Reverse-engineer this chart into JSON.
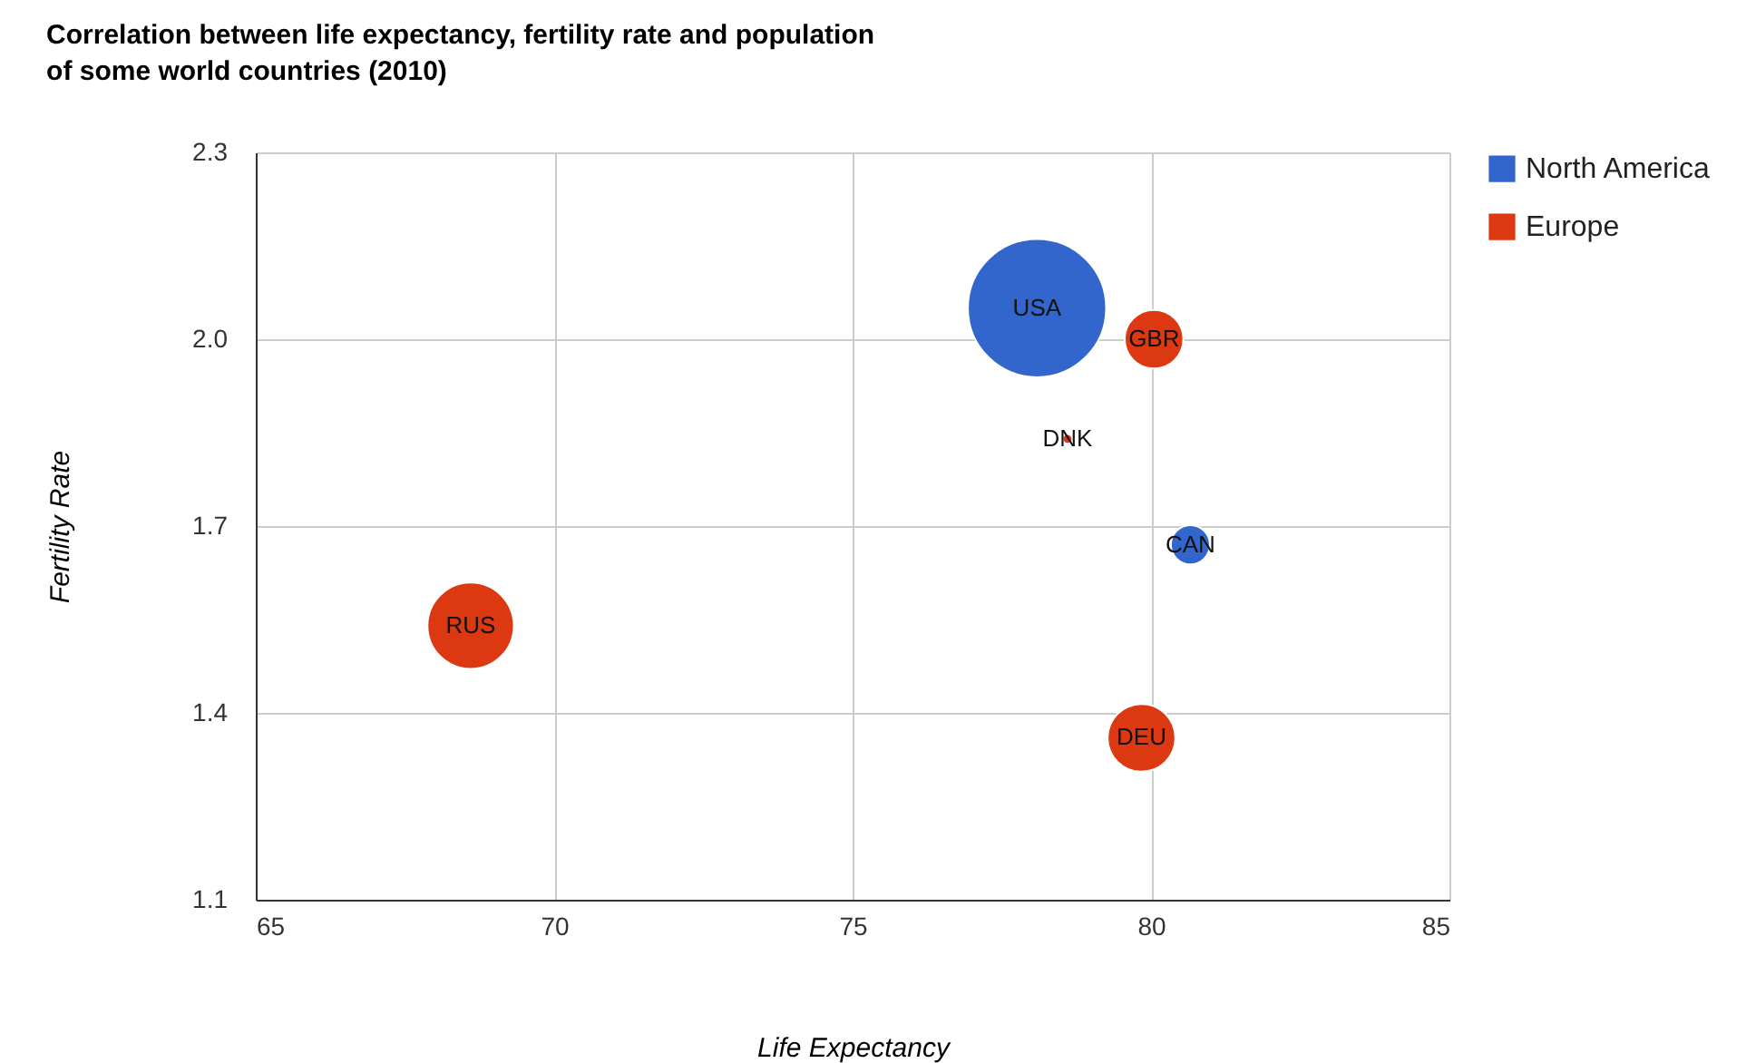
{
  "chart_data": {
    "type": "bubble",
    "title": "Correlation between life expectancy, fertility rate and population of some world countries (2010)",
    "xlabel": "Life Expectancy",
    "ylabel": "Fertility Rate",
    "series": [
      {
        "name": "North America",
        "color": "#3366cc",
        "x": [
          80.66,
          78.09
        ],
        "values": [
          1.67,
          2.05
        ],
        "sizes": [
          0.08,
          1
        ]
      },
      {
        "name": "Europe",
        "color": "#dc3912",
        "x": [
          79.84,
          78.6,
          80.05,
          68.6
        ],
        "values": [
          1.36,
          1.84,
          2,
          1.54
        ],
        "sizes": [
          0.24,
          0.005,
          0.18,
          0.39
        ]
      }
    ],
    "annotations": [
      {
        "text": "CAN",
        "x": 80.66,
        "y": 1.67
      },
      {
        "text": "USA",
        "x": 78.09,
        "y": 2.05
      },
      {
        "text": "DEU",
        "x": 79.84,
        "y": 1.36
      },
      {
        "text": "DNK",
        "x": 78.6,
        "y": 1.84
      },
      {
        "text": "GBR",
        "x": 80.05,
        "y": 2
      },
      {
        "text": "RUS",
        "x": 68.6,
        "y": 1.54
      }
    ],
    "xlim": [
      65,
      85
    ],
    "xticks": [
      65,
      70,
      75,
      80,
      85
    ],
    "ylim": [
      1.1,
      2.3
    ],
    "yticks": [
      1.1,
      1.4,
      1.7,
      {
        "value": 2,
        "label": "2.0"
      },
      2.3
    ],
    "grid": true,
    "legend": "right"
  }
}
